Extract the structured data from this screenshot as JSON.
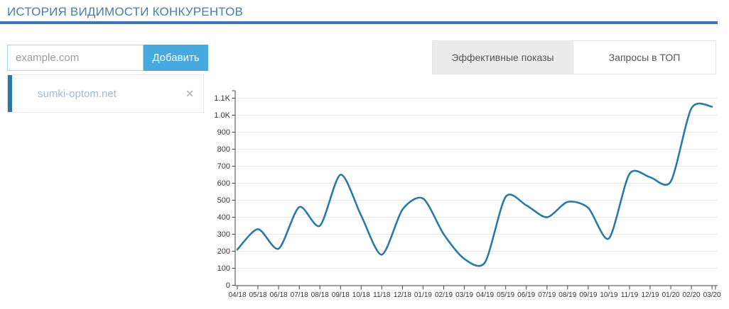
{
  "header": {
    "title": "ИСТОРИЯ ВИДИМОСТИ КОНКУРЕНТОВ",
    "accent_color": "#3d74b8"
  },
  "domain_form": {
    "placeholder": "example.com",
    "add_button": "Добавить",
    "button_color": "#47a9dd"
  },
  "tabs": [
    {
      "label": "Эффективные показы",
      "active": true
    },
    {
      "label": "Запросы в ТОП",
      "active": false
    }
  ],
  "competitors": [
    {
      "domain": "sumki-optom.net",
      "accent_color": "#2d77a5",
      "remove_icon": "✕"
    }
  ],
  "chart_data": {
    "type": "line",
    "title": "",
    "xlabel": "",
    "ylabel": "",
    "x": [
      "04/18",
      "05/18",
      "06/18",
      "07/18",
      "08/18",
      "09/18",
      "10/18",
      "11/18",
      "12/18",
      "01/19",
      "02/19",
      "03/19",
      "04/19",
      "05/19",
      "06/19",
      "07/19",
      "08/19",
      "09/19",
      "10/19",
      "11/19",
      "12/19",
      "01/20",
      "02/20",
      "03/20"
    ],
    "series": [
      {
        "name": "sumki-optom.net",
        "color": "#2a7aa5",
        "values": [
          210,
          330,
          215,
          460,
          350,
          650,
          410,
          180,
          445,
          510,
          300,
          155,
          135,
          520,
          470,
          400,
          490,
          455,
          275,
          655,
          635,
          610,
          1040,
          1050
        ]
      }
    ],
    "ylim": [
      0,
      1100
    ],
    "ytick_step": 100,
    "ytick_labels": [
      "0",
      "100",
      "200",
      "300",
      "400",
      "500",
      "600",
      "700",
      "800",
      "900",
      "1.0K",
      "1.1K"
    ],
    "grid": true,
    "smooth": true,
    "legend_position": "none",
    "grid_color": "#e8e8e8",
    "axis_color": "#444444"
  }
}
